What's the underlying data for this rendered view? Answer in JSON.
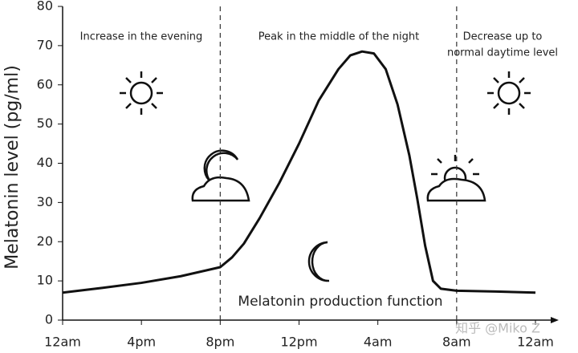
{
  "chart_data": {
    "type": "line",
    "y_label": "Melatonin level (pg/ml)",
    "x": [
      0,
      2,
      4,
      6,
      8,
      8.6,
      9.2,
      10,
      11,
      12,
      13,
      14,
      14.6,
      15.2,
      15.8,
      16.4,
      17,
      17.6,
      18,
      18.4,
      18.8,
      19.2,
      20,
      22,
      24
    ],
    "series": [
      {
        "name": "Melatonin production function",
        "color": "#111111",
        "values": [
          7,
          8.2,
          9.5,
          11.2,
          13.5,
          16,
          19.5,
          26,
          35,
          45,
          56,
          64,
          67.5,
          68.5,
          68,
          64,
          55,
          42,
          31,
          19,
          10,
          8,
          7.5,
          7.3,
          7
        ]
      }
    ],
    "xlim": [
      0,
      24
    ],
    "xticks": [
      {
        "value": 0,
        "label": "12am"
      },
      {
        "value": 4,
        "label": "4pm"
      },
      {
        "value": 8,
        "label": "8pm"
      },
      {
        "value": 12,
        "label": "12pm"
      },
      {
        "value": 16,
        "label": "4am"
      },
      {
        "value": 20,
        "label": "8am"
      },
      {
        "value": 24,
        "label": "12am"
      }
    ],
    "ylim": [
      0,
      80
    ],
    "yticks": [
      0,
      10,
      20,
      30,
      40,
      50,
      60,
      70,
      80
    ],
    "vlines": [
      8,
      20
    ],
    "annotations": [
      "Increase in the evening",
      "Peak in the middle of the night",
      "Decrease up to",
      "normal daytime level"
    ],
    "watermark": "知乎 @Miko Z"
  }
}
